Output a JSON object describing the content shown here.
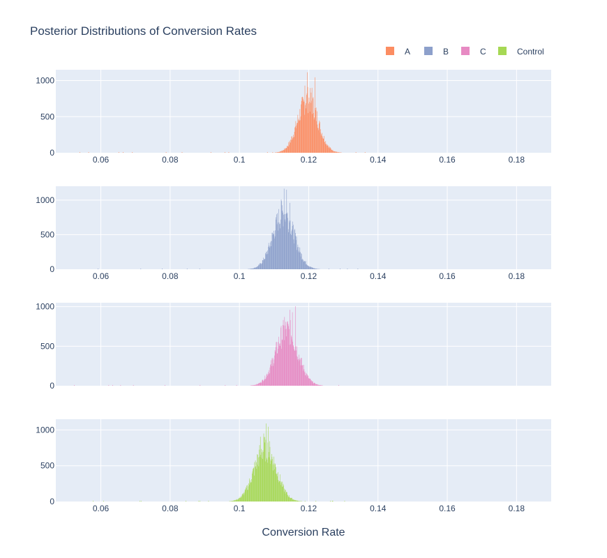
{
  "chart_data": {
    "type": "histogram",
    "title": "Posterior Distributions of Conversion Rates",
    "xlabel": "Conversion Rate",
    "xlim": [
      0.047,
      0.19
    ],
    "x_ticks": [
      "0.06",
      "0.08",
      "0.1",
      "0.12",
      "0.14",
      "0.16",
      "0.18"
    ],
    "x_tick_values": [
      0.06,
      0.08,
      0.1,
      0.12,
      0.14,
      0.16,
      0.18
    ],
    "grid": true,
    "legend_position": "top-right",
    "panels": [
      {
        "name": "A",
        "color": "#fc8d62",
        "y_ticks": [
          "0",
          "500",
          "1000"
        ],
        "y_tick_values": [
          0,
          500,
          1000
        ],
        "ylim": [
          0,
          1150
        ],
        "peak_x": 0.1197,
        "peak_count": 760,
        "spread": 0.0029,
        "max_count": 1115,
        "x_min": 0.109,
        "x_max": 0.132,
        "spikes": [
          [
            0.1195,
            1115
          ],
          [
            0.1217,
            1045
          ],
          [
            0.1209,
            900
          ],
          [
            0.1188,
            930
          ]
        ]
      },
      {
        "name": "B",
        "color": "#8da0cb",
        "y_ticks": [
          "0",
          "500",
          "1000"
        ],
        "y_tick_values": [
          0,
          500,
          1000
        ],
        "ylim": [
          0,
          1200
        ],
        "peak_x": 0.1127,
        "peak_count": 830,
        "spread": 0.0031,
        "max_count": 1165,
        "x_min": 0.1,
        "x_max": 0.125,
        "spikes": [
          [
            0.1128,
            1165
          ],
          [
            0.1136,
            1150
          ],
          [
            0.112,
            1010
          ],
          [
            0.1145,
            960
          ]
        ]
      },
      {
        "name": "C",
        "color": "#e78ac3",
        "y_ticks": [
          "0",
          "500",
          "1000"
        ],
        "y_tick_values": [
          0,
          500,
          1000
        ],
        "ylim": [
          0,
          1050
        ],
        "peak_x": 0.1136,
        "peak_count": 720,
        "spread": 0.0032,
        "max_count": 1005,
        "x_min": 0.103,
        "x_max": 0.124,
        "spikes": [
          [
            0.1161,
            1005
          ],
          [
            0.1145,
            960
          ],
          [
            0.113,
            870
          ],
          [
            0.1152,
            930
          ]
        ]
      },
      {
        "name": "Control",
        "color": "#a6d854",
        "y_ticks": [
          "0",
          "500",
          "1000"
        ],
        "y_tick_values": [
          0,
          500,
          1000
        ],
        "ylim": [
          0,
          1150
        ],
        "peak_x": 0.1074,
        "peak_count": 760,
        "spread": 0.0032,
        "max_count": 1090,
        "x_min": 0.097,
        "x_max": 0.118,
        "spikes": [
          [
            0.1077,
            1090
          ],
          [
            0.1083,
            1045
          ],
          [
            0.107,
            950
          ],
          [
            0.106,
            905
          ]
        ]
      }
    ]
  }
}
